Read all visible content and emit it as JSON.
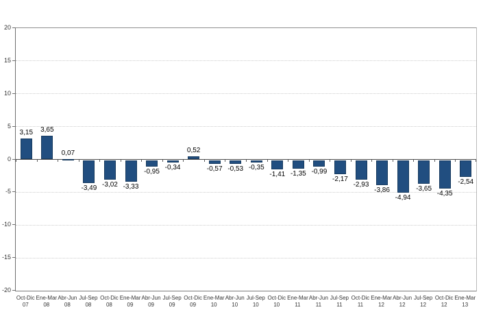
{
  "chart_data": {
    "type": "bar",
    "legend": "none",
    "grid": true,
    "ylim": [
      -20,
      20
    ],
    "ytick_interval": 5,
    "yticks": [
      20,
      15,
      10,
      5,
      0,
      -5,
      -10,
      -15,
      -20
    ],
    "categories": [
      {
        "quarter": "Oct-Dic",
        "year": "07"
      },
      {
        "quarter": "Ene-Mar",
        "year": "08"
      },
      {
        "quarter": "Abr-Jun",
        "year": "08"
      },
      {
        "quarter": "Jul-Sep",
        "year": "08"
      },
      {
        "quarter": "Oct-Dic",
        "year": "08"
      },
      {
        "quarter": "Ene-Mar",
        "year": "09"
      },
      {
        "quarter": "Abr-Jun",
        "year": "09"
      },
      {
        "quarter": "Jul-Sep",
        "year": "09"
      },
      {
        "quarter": "Oct-Dic",
        "year": "09"
      },
      {
        "quarter": "Ene-Mar",
        "year": "10"
      },
      {
        "quarter": "Abr-Jun",
        "year": "10"
      },
      {
        "quarter": "Jul-Sep",
        "year": "10"
      },
      {
        "quarter": "Oct-Dic",
        "year": "10"
      },
      {
        "quarter": "Ene-Mar",
        "year": "11"
      },
      {
        "quarter": "Abr-Jun",
        "year": "11"
      },
      {
        "quarter": "Jul-Sep",
        "year": "11"
      },
      {
        "quarter": "Oct-Dic",
        "year": "11"
      },
      {
        "quarter": "Ene-Mar",
        "year": "12"
      },
      {
        "quarter": "Abr-Jun",
        "year": "12"
      },
      {
        "quarter": "Jul-Sep",
        "year": "12"
      },
      {
        "quarter": "Oct-Dic",
        "year": "12"
      },
      {
        "quarter": "Ene-Mar",
        "year": "13"
      }
    ],
    "values": [
      3.15,
      3.65,
      0.07,
      -3.49,
      -3.02,
      -3.33,
      -0.95,
      -0.34,
      0.52,
      -0.57,
      -0.53,
      -0.35,
      -1.41,
      -1.35,
      -0.99,
      -2.17,
      -2.93,
      -3.86,
      -4.94,
      -3.65,
      -4.35,
      -2.54
    ],
    "value_labels": [
      "3,15",
      "3,65",
      "0,07",
      "-3,49",
      "-3,02",
      "-3,33",
      "-0,95",
      "-0,34",
      "0,52",
      "-0,57",
      "-0,53",
      "-0,35",
      "-1,41",
      "-1,35",
      "-0,99",
      "-2,17",
      "-2,93",
      "-3,86",
      "-4,94",
      "-3,65",
      "-4,35",
      "-2,54"
    ],
    "colors": {
      "bar_fill": "#214e80",
      "bar_border": "#173a5e",
      "gridline": "#cccccc",
      "zero_line": "#4d4d4d",
      "axis_line": "#6e6e6e",
      "value_label_text": "#000000",
      "tick_label_text": "#333333",
      "background": "#ffffff"
    }
  }
}
